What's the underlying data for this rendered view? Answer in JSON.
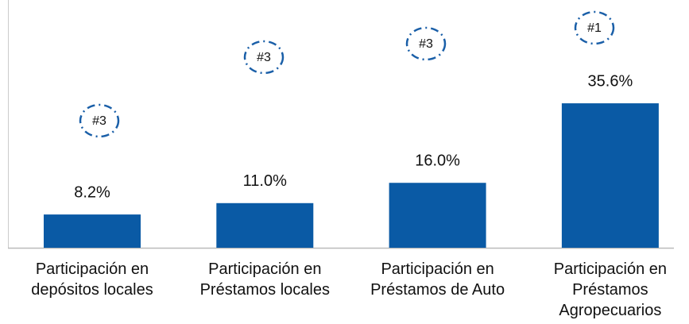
{
  "chart_data": {
    "type": "bar",
    "categories": [
      [
        "Participación en",
        "depósitos locales"
      ],
      [
        "Participación en",
        "Préstamos locales"
      ],
      [
        "Participación en",
        "Préstamos de Auto"
      ],
      [
        "Participación en",
        "Préstamos",
        "Agropecuarios"
      ]
    ],
    "values": [
      8.2,
      11.0,
      16.0,
      35.6
    ],
    "value_labels": [
      "8.2%",
      "11.0%",
      "16.0%",
      "35.6%"
    ],
    "annotations": [
      "#3",
      "#3",
      "#3",
      "#1"
    ],
    "color": "#0a5aa5"
  }
}
